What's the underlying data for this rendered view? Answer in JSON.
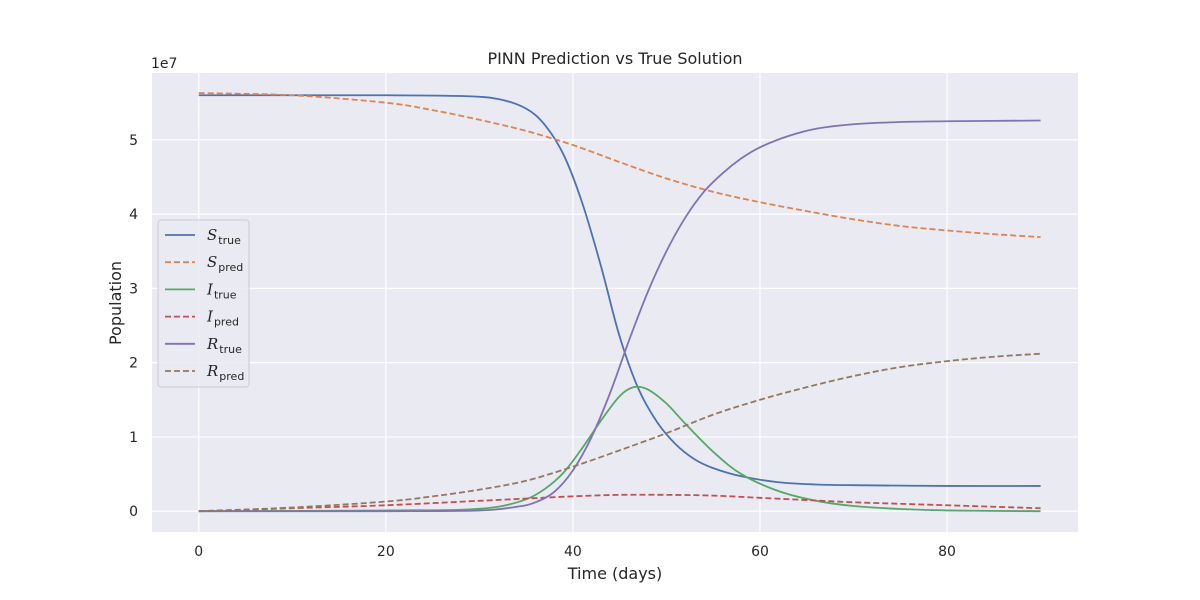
{
  "chart_data": {
    "type": "line",
    "title": "PINN Prediction vs True Solution",
    "xlabel": "Time (days)",
    "ylabel": "Population",
    "y_scale_label": "1e7",
    "xlim": [
      -5,
      94
    ],
    "ylim": [
      -0.28,
      5.9
    ],
    "x_ticks": [
      0,
      20,
      40,
      60,
      80
    ],
    "y_ticks": [
      0,
      1,
      2,
      3,
      4,
      5
    ],
    "x_tick_labels": [
      "0",
      "20",
      "40",
      "60",
      "80"
    ],
    "y_tick_labels": [
      "0",
      "1",
      "2",
      "3",
      "4",
      "5"
    ],
    "grid": true,
    "background": "#eaeaf2",
    "legend_position": "center-left",
    "series": [
      {
        "name": "S_true",
        "symbol": "S",
        "subscript": "true",
        "color": "#4c72b0",
        "dash": "solid",
        "x": [
          0,
          10,
          20,
          28,
          32,
          35,
          37,
          39,
          41,
          43,
          45,
          47,
          49,
          51,
          53,
          55,
          58,
          62,
          66,
          70,
          80,
          90
        ],
        "y": [
          5.6,
          5.6,
          5.6,
          5.59,
          5.55,
          5.42,
          5.2,
          4.8,
          4.15,
          3.3,
          2.35,
          1.65,
          1.2,
          0.9,
          0.7,
          0.58,
          0.47,
          0.39,
          0.36,
          0.35,
          0.34,
          0.34
        ]
      },
      {
        "name": "S_pred",
        "symbol": "S",
        "subscript": "pred",
        "color": "#dd8452",
        "dash": "dashed",
        "x": [
          0,
          10,
          20,
          25,
          30,
          35,
          40,
          45,
          50,
          55,
          60,
          65,
          70,
          75,
          80,
          85,
          90
        ],
        "y": [
          5.63,
          5.6,
          5.5,
          5.4,
          5.27,
          5.12,
          4.93,
          4.7,
          4.48,
          4.3,
          4.16,
          4.04,
          3.93,
          3.84,
          3.78,
          3.73,
          3.69
        ]
      },
      {
        "name": "I_true",
        "symbol": "I",
        "subscript": "true",
        "color": "#55a868",
        "dash": "solid",
        "x": [
          0,
          20,
          28,
          32,
          35,
          37,
          39,
          41,
          43,
          45,
          46.5,
          48,
          50,
          52,
          55,
          58,
          62,
          66,
          70,
          75,
          80,
          90
        ],
        "y": [
          0,
          0.01,
          0.02,
          0.06,
          0.16,
          0.3,
          0.52,
          0.85,
          1.22,
          1.55,
          1.67,
          1.64,
          1.45,
          1.18,
          0.8,
          0.5,
          0.27,
          0.14,
          0.07,
          0.03,
          0.01,
          0.0
        ]
      },
      {
        "name": "I_pred",
        "symbol": "I",
        "subscript": "pred",
        "color": "#c44e52",
        "dash": "dashed",
        "x": [
          0,
          10,
          20,
          30,
          35,
          40,
          45,
          50,
          55,
          60,
          65,
          70,
          75,
          80,
          85,
          90
        ],
        "y": [
          0.0,
          0.04,
          0.08,
          0.14,
          0.17,
          0.2,
          0.22,
          0.22,
          0.21,
          0.18,
          0.15,
          0.12,
          0.1,
          0.08,
          0.06,
          0.04
        ]
      },
      {
        "name": "R_true",
        "symbol": "R",
        "subscript": "true",
        "color": "#8172b3",
        "dash": "solid",
        "x": [
          0,
          20,
          30,
          34,
          36,
          38,
          40,
          42,
          44,
          46,
          48,
          50,
          52,
          54,
          56,
          58,
          60,
          63,
          66,
          70,
          75,
          80,
          90
        ],
        "y": [
          0,
          0,
          0.01,
          0.06,
          0.12,
          0.26,
          0.55,
          1.0,
          1.6,
          2.3,
          2.95,
          3.5,
          3.95,
          4.3,
          4.55,
          4.75,
          4.9,
          5.05,
          5.15,
          5.21,
          5.24,
          5.25,
          5.26
        ]
      },
      {
        "name": "R_pred",
        "symbol": "R",
        "subscript": "pred",
        "color": "#937860",
        "dash": "dashed",
        "x": [
          0,
          10,
          20,
          25,
          30,
          35,
          40,
          45,
          50,
          55,
          60,
          65,
          70,
          75,
          80,
          85,
          90
        ],
        "y": [
          0.0,
          0.05,
          0.13,
          0.2,
          0.29,
          0.41,
          0.6,
          0.82,
          1.05,
          1.3,
          1.5,
          1.67,
          1.82,
          1.94,
          2.02,
          2.08,
          2.12
        ]
      }
    ]
  }
}
